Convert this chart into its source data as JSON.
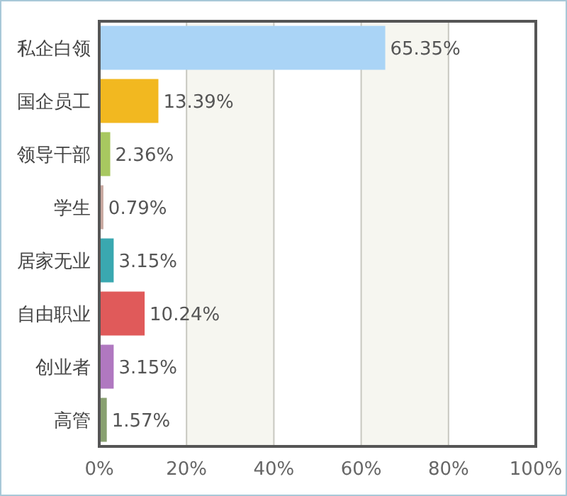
{
  "chart_data": {
    "type": "bar",
    "orientation": "horizontal",
    "categories": [
      "私企白领",
      "国企员工",
      "领导干部",
      "学生",
      "居家无业",
      "自由职业",
      "创业者",
      "高管"
    ],
    "values": [
      65.35,
      13.39,
      2.36,
      0.79,
      3.15,
      10.24,
      3.15,
      1.57
    ],
    "value_labels": [
      "65.35%",
      "13.39%",
      "2.36%",
      "0.79%",
      "3.15%",
      "10.24%",
      "3.15%",
      "1.57%"
    ],
    "colors": [
      "#aad4f6",
      "#f2b820",
      "#a8c860",
      "#c8a8a0",
      "#3aa8b0",
      "#e05a5a",
      "#b078c0",
      "#88a070"
    ],
    "xlim": [
      0,
      100
    ],
    "xticks": [
      {
        "value": 0,
        "label": "0%"
      },
      {
        "value": 20,
        "label": "20%"
      },
      {
        "value": 40,
        "label": "40%"
      },
      {
        "value": 60,
        "label": "60%"
      },
      {
        "value": 80,
        "label": "80%"
      },
      {
        "value": 100,
        "label": "100%"
      }
    ],
    "grid": "x"
  }
}
